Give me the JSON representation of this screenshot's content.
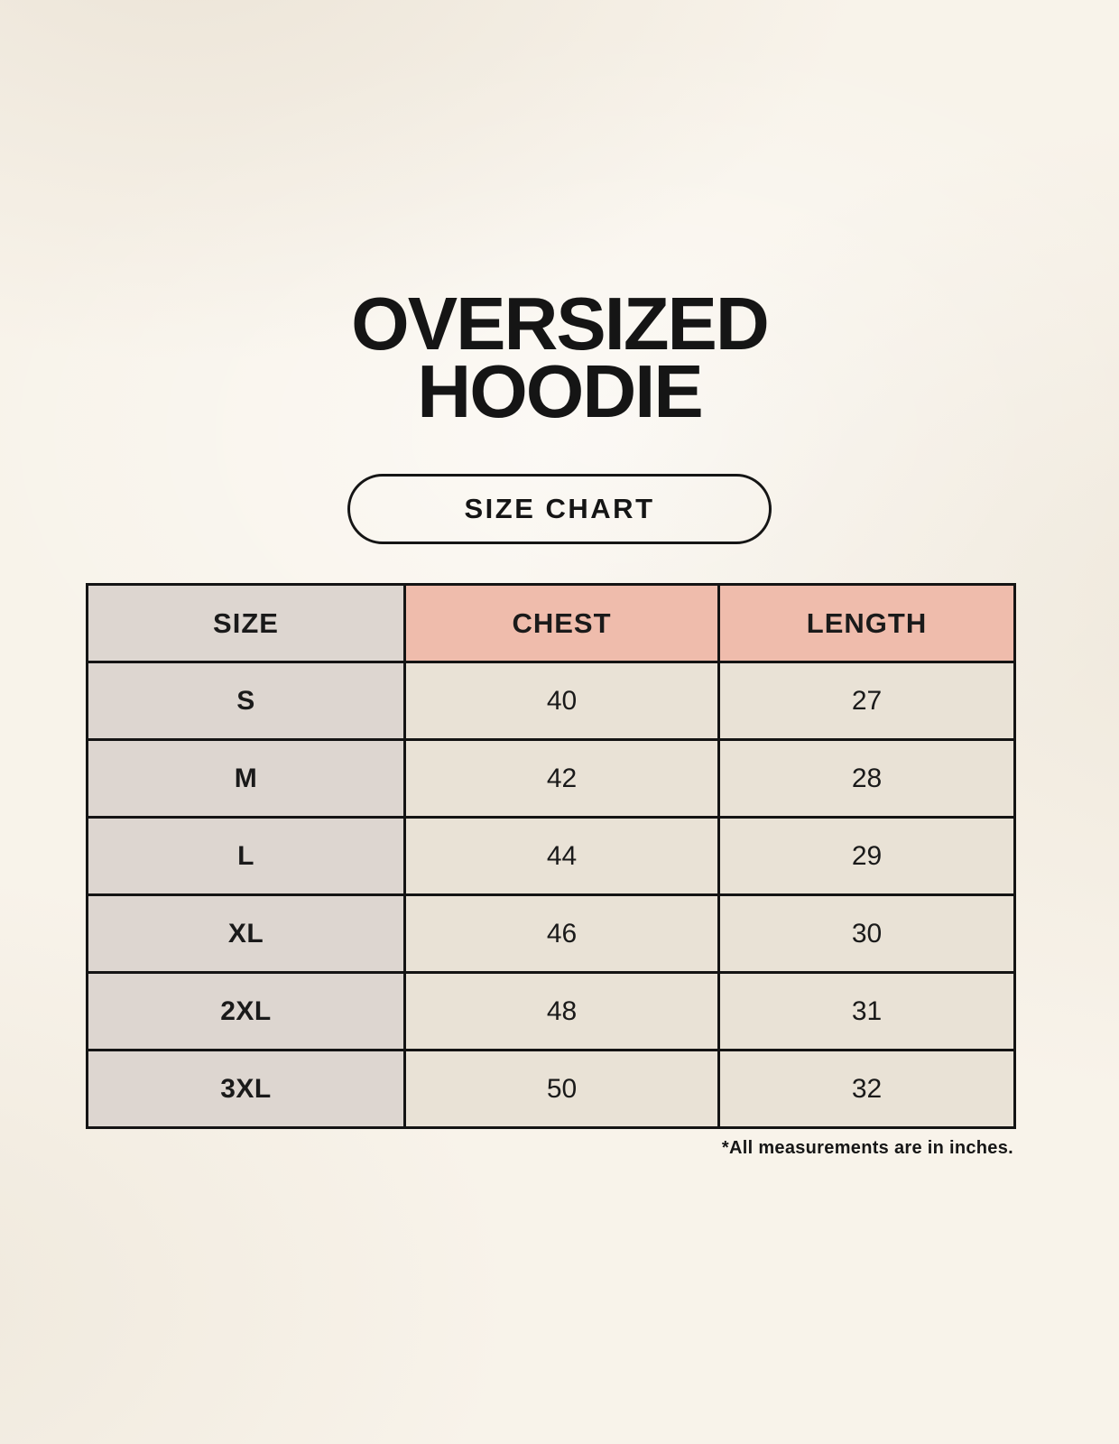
{
  "header": {
    "title_line1": "OVERSIZED",
    "title_line2": "HOODIE",
    "badge_label": "SIZE CHART"
  },
  "chart_data": {
    "type": "table",
    "title": "OVERSIZED HOODIE — SIZE CHART",
    "columns": [
      "SIZE",
      "CHEST",
      "LENGTH"
    ],
    "rows": [
      [
        "S",
        40,
        27
      ],
      [
        "M",
        42,
        28
      ],
      [
        "L",
        44,
        29
      ],
      [
        "XL",
        46,
        30
      ],
      [
        "2XL",
        48,
        31
      ],
      [
        "3XL",
        50,
        32
      ]
    ],
    "units": "inches"
  },
  "footnote": "*All measurements are in inches.",
  "colors": {
    "page_background": "#f8f3ea",
    "size_column_bg": "#ddd6d0",
    "measure_header_bg": "#efbcac",
    "data_cell_bg": "#e9e2d6",
    "grid_border": "#141414",
    "text": "#1a1a1a"
  }
}
